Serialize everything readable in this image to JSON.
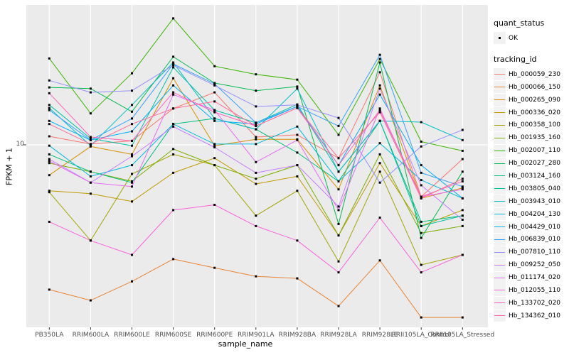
{
  "chart_data": {
    "type": "line",
    "title": "",
    "xlabel": "sample_name",
    "ylabel": "FPKM + 1",
    "y_scale": "log10",
    "y_tick_labels": [
      "10"
    ],
    "y_tick_values": [
      10
    ],
    "ylim": [
      0.9,
      60
    ],
    "grid": "ggplot-vertical-category-lines",
    "legend_position": "right",
    "point_marker": "small-black-square",
    "categories": [
      "PB350LA",
      "RRIM600LA",
      "RRIM600LE",
      "RRIM600SE",
      "RRIM600PE",
      "RRIM901LA",
      "RRIM928BA",
      "RRIM928LA",
      "RRIM928LE",
      "RRII105LA_Control",
      "RRII105LA_Stressed"
    ],
    "series": [
      {
        "name": "Hb_000059_230",
        "color": "#F8766D",
        "values": [
          11.1,
          10.1,
          10.5,
          15.6,
          19.0,
          11.0,
          11.3,
          8.5,
          24.3,
          5.3,
          8.4
        ]
      },
      {
        "name": "Hb_000066_150",
        "color": "#EA8331",
        "values": [
          1.7,
          1.49,
          1.88,
          2.47,
          2.22,
          2.0,
          1.95,
          1.39,
          2.43,
          1.21,
          1.21
        ]
      },
      {
        "name": "Hb_000265_090",
        "color": "#D89000",
        "values": [
          6.9,
          9.8,
          8.9,
          22.6,
          9.9,
          10.7,
          10.7,
          5.8,
          20.7,
          5.2,
          5.9
        ]
      },
      {
        "name": "Hb_000336_020",
        "color": "#C09B00",
        "values": [
          5.7,
          5.5,
          5.0,
          7.1,
          8.5,
          6.2,
          6.8,
          3.3,
          8.0,
          3.7,
          4.5
        ]
      },
      {
        "name": "Hb_000358_100",
        "color": "#A3A500",
        "values": [
          5.6,
          3.1,
          7.0,
          8.9,
          7.8,
          4.2,
          5.7,
          2.4,
          7.2,
          2.3,
          2.6
        ]
      },
      {
        "name": "Hb_001935_160",
        "color": "#7CAE00",
        "values": [
          8.0,
          7.2,
          6.4,
          9.5,
          7.8,
          6.6,
          7.8,
          3.3,
          8.9,
          3.4,
          3.7
        ]
      },
      {
        "name": "Hb_002007_110",
        "color": "#39B600",
        "values": [
          28.8,
          14.7,
          24.0,
          47.0,
          26.2,
          23.7,
          22.2,
          11.3,
          28.6,
          10.4,
          9.3
        ]
      },
      {
        "name": "Hb_002027_280",
        "color": "#00BB4E",
        "values": [
          20.2,
          19.9,
          15.0,
          29.4,
          21.3,
          19.4,
          20.4,
          3.8,
          27.4,
          3.2,
          7.2
        ]
      },
      {
        "name": "Hb_003124_160",
        "color": "#00BF7D",
        "values": [
          8.9,
          7.2,
          6.3,
          12.9,
          13.8,
          12.1,
          9.1,
          6.4,
          13.4,
          3.9,
          4.2
        ]
      },
      {
        "name": "Hb_003805_040",
        "color": "#00C1A3",
        "values": [
          16.3,
          10.8,
          9.9,
          25.8,
          15.3,
          13.1,
          16.4,
          7.2,
          13.4,
          3.7,
          4.2
        ]
      },
      {
        "name": "Hb_003943_010",
        "color": "#00BFC4",
        "values": [
          15.7,
          9.9,
          16.3,
          27.4,
          13.8,
          12.1,
          19.9,
          7.2,
          13.4,
          13.2,
          10.6
        ]
      },
      {
        "name": "Hb_004204_130",
        "color": "#00BAE0",
        "values": [
          9.9,
          6.8,
          7.8,
          12.9,
          10.1,
          10.1,
          12.5,
          6.4,
          10.2,
          6.5,
          5.2
        ]
      },
      {
        "name": "Hb_004429_010",
        "color": "#00B0F6",
        "values": [
          13.4,
          10.6,
          11.8,
          20.7,
          13.4,
          12.9,
          16.0,
          7.8,
          18.5,
          7.8,
          5.2
        ]
      },
      {
        "name": "Hb_006839_010",
        "color": "#35A2FF",
        "values": [
          15.3,
          10.6,
          13.8,
          26.9,
          21.1,
          13.1,
          16.0,
          12.6,
          30.1,
          7.1,
          6.0
        ]
      },
      {
        "name": "Hb_007810_110",
        "color": "#9590FF",
        "values": [
          22.0,
          19.0,
          19.4,
          26.5,
          20.7,
          16.0,
          16.3,
          13.9,
          6.3,
          9.8,
          12.0
        ]
      },
      {
        "name": "Hb_009252_050",
        "color": "#C77CFF",
        "values": [
          8.4,
          6.3,
          8.7,
          12.5,
          9.7,
          7.1,
          7.8,
          4.7,
          19.9,
          6.1,
          4.0
        ]
      },
      {
        "name": "Hb_011174_020",
        "color": "#E76BF3",
        "values": [
          8.2,
          6.3,
          6.0,
          18.5,
          15.3,
          8.1,
          10.6,
          4.5,
          15.6,
          5.3,
          5.8
        ]
      },
      {
        "name": "Hb_012055_110",
        "color": "#FA62DB",
        "values": [
          3.9,
          3.1,
          2.6,
          4.5,
          4.8,
          3.7,
          3.1,
          2.1,
          4.1,
          2.1,
          2.6
        ]
      },
      {
        "name": "Hb_133702_020",
        "color": "#FF62BC",
        "values": [
          18.8,
          11.0,
          10.5,
          19.0,
          14.9,
          12.6,
          15.7,
          7.8,
          15.3,
          5.3,
          6.4
        ]
      },
      {
        "name": "Hb_134362_010",
        "color": "#FF6A98",
        "values": [
          12.9,
          10.1,
          12.9,
          15.6,
          17.0,
          12.6,
          15.7,
          8.5,
          14.9,
          5.2,
          6.6
        ]
      }
    ]
  },
  "legend": {
    "quant_status_title": "quant_status",
    "quant_status_items": [
      {
        "label": "OK"
      }
    ],
    "tracking_title": "tracking_id"
  },
  "colors": {
    "panel_bg": "#EBEBEB",
    "grid": "#FFFFFF",
    "legend_key_bg": "#F2F2F2",
    "tick_text": "#4D4D4D",
    "tick_mark": "#333333",
    "point": "#000000"
  }
}
